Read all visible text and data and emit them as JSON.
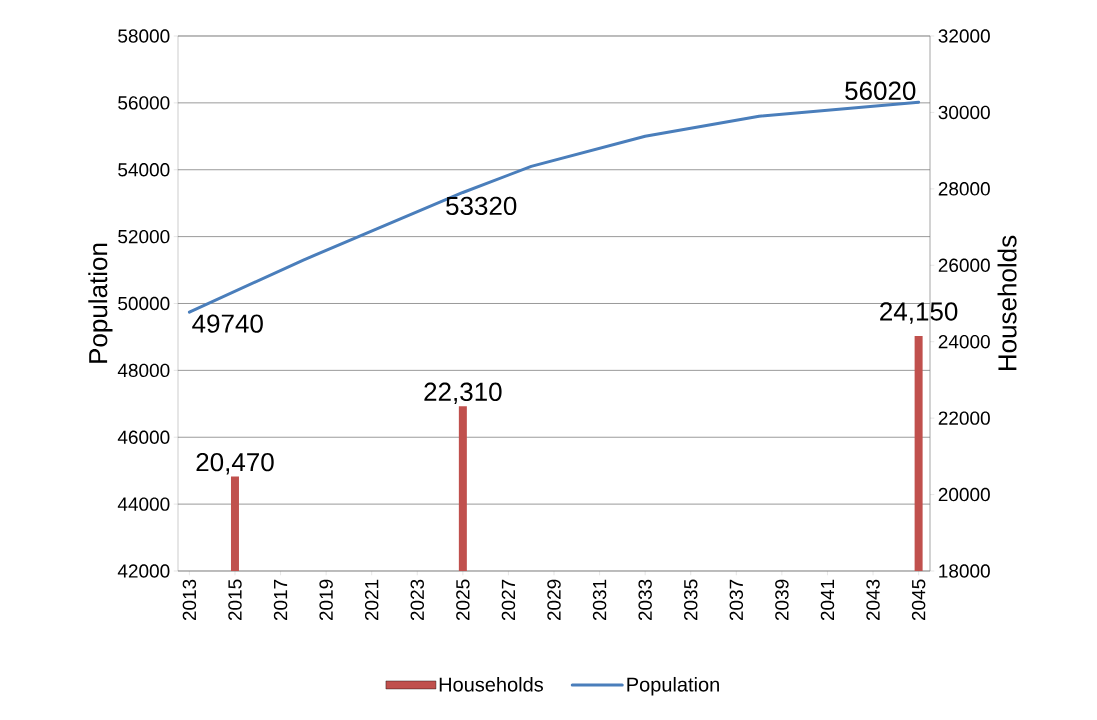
{
  "chart_data": {
    "type": "bar",
    "ylabel": "Population",
    "y2label": "Households",
    "xlim": [
      2012.5,
      2045.5
    ],
    "xticks": [
      2013,
      2015,
      2017,
      2019,
      2021,
      2023,
      2025,
      2027,
      2029,
      2031,
      2033,
      2035,
      2037,
      2039,
      2041,
      2043,
      2045
    ],
    "ylim": [
      42000,
      58000
    ],
    "yticks": [
      42000,
      44000,
      46000,
      48000,
      50000,
      52000,
      54000,
      56000,
      58000
    ],
    "y2lim": [
      18000,
      32000
    ],
    "y2ticks": [
      18000,
      20000,
      22000,
      24000,
      26000,
      28000,
      30000,
      32000
    ],
    "grid": "y",
    "legend": "bottom",
    "series": [
      {
        "name": "Households",
        "axis": "y2",
        "color": "#c0504d",
        "x": [
          2015,
          2025,
          2045
        ],
        "values": [
          20470,
          22310,
          24150
        ],
        "value_labels": [
          "20,470",
          "22,310",
          "24,150"
        ]
      },
      {
        "name": "Population",
        "type": "line",
        "color": "#4a7ebb",
        "x": [
          2013,
          2018,
          2025,
          2028,
          2033,
          2038,
          2045
        ],
        "values": [
          49740,
          51300,
          53320,
          54100,
          55000,
          55600,
          56020
        ],
        "value_labels": [
          "49740",
          null,
          "53320",
          null,
          null,
          null,
          "56020"
        ]
      }
    ]
  }
}
